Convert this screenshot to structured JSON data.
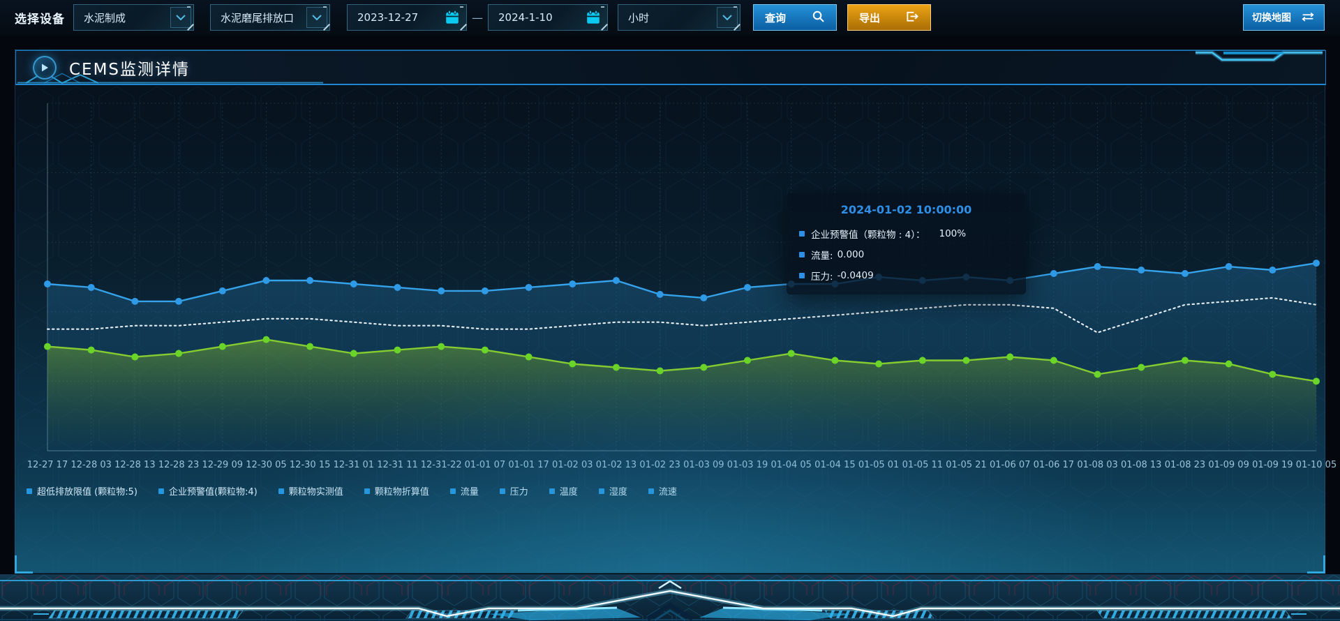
{
  "toolbar": {
    "device_label": "选择设备",
    "device_select": {
      "value": "水泥制成"
    },
    "outlet_select": {
      "value": "水泥磨尾排放口"
    },
    "date_start": "2023-12-27",
    "date_separator": "—",
    "date_end": "2024-1-10",
    "interval_select": {
      "value": "小时"
    },
    "query_button": "查询",
    "export_button": "导出",
    "switch_map_button": "切换地图"
  },
  "panel": {
    "title": "CEMS监测详情"
  },
  "tooltip": {
    "title": "2024-01-02 10:00:00",
    "rows": [
      {
        "label": "企业预警值（颗粒物 : 4）：",
        "value": "100%"
      },
      {
        "label": "流量:",
        "value": "0.000"
      },
      {
        "label": "压力:",
        "value": "-0.0409"
      }
    ]
  },
  "legend": {
    "marker_color": "#2596e0",
    "items": [
      "超低排放限值 (颗粒物:5)",
      "企业预警值(颗粒物:4)",
      "颗粒物实测值",
      "颗粒物折算值",
      "流量",
      "压力",
      "温度",
      "湿度",
      "流速"
    ]
  },
  "chart_data": {
    "type": "line",
    "title": "CEMS监测详情",
    "xlabel": "",
    "ylabel": "",
    "ylim": [
      0,
      100
    ],
    "grid": true,
    "legend_position": "bottom",
    "x_labels": [
      "12-27 17",
      "12-28 03",
      "12-28 13",
      "12-28 23",
      "12-29 09",
      "12-30 05",
      "12-30 15",
      "12-31 01",
      "12-31 11",
      "12-31-22",
      "01-01 07",
      "01-01 17",
      "01-02 03",
      "01-02 13",
      "01-02 23",
      "01-03 09",
      "01-03 19",
      "01-04 05",
      "01-04 15",
      "01-05 01",
      "01-05 11",
      "01-05 21",
      "01-06 07",
      "01-06 17",
      "01-08 03",
      "01-08 13",
      "01-08 23",
      "01-09 09",
      "01-09 19",
      "01-10 05"
    ],
    "series": [
      {
        "name": "企业预警值(颗粒物:4)",
        "color": "#35a2ea",
        "marker_color": "#2f9ae6",
        "style": "solid",
        "markers": true,
        "area": true,
        "area_from": "rgba(36,118,170,0.38)",
        "area_to": "rgba(24,90,140,0.02)",
        "values": [
          48,
          47,
          43,
          43,
          46,
          49,
          49,
          48,
          47,
          46,
          46,
          47,
          48,
          49,
          45,
          44,
          47,
          48,
          48,
          50,
          49,
          50,
          49,
          51,
          53,
          52,
          51,
          53,
          52,
          54
        ]
      },
      {
        "name": "压力",
        "color": "#e6eef2",
        "style": "dotted",
        "markers": false,
        "area": false,
        "values": [
          35,
          35,
          36,
          36,
          37,
          38,
          38,
          37,
          36,
          36,
          35,
          35,
          36,
          37,
          37,
          36,
          37,
          38,
          39,
          40,
          41,
          42,
          42,
          41,
          34,
          38,
          42,
          43,
          44,
          42
        ]
      },
      {
        "name": "流量",
        "color": "#85cc30",
        "marker_color": "#6ad428",
        "style": "solid",
        "markers": true,
        "area": true,
        "area_from": "rgba(125,180,45,0.50)",
        "area_to": "rgba(70,110,45,0.0)",
        "values": [
          30,
          29,
          27,
          28,
          30,
          32,
          30,
          28,
          29,
          30,
          29,
          27,
          25,
          24,
          23,
          24,
          26,
          28,
          26,
          25,
          26,
          26,
          27,
          26,
          22,
          24,
          26,
          25,
          22,
          20
        ]
      }
    ]
  },
  "colors": {
    "accent_cyan": "#2fa8e0",
    "button_blue": "#1b84c8",
    "button_orange": "#d99514",
    "tooltip_accent": "#2e8fe6",
    "tick_text": "#9cc3d9"
  }
}
